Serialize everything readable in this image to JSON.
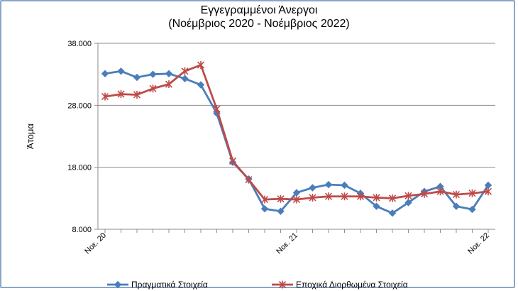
{
  "chart_data": {
    "type": "line",
    "title_line1": "Εγγεγραμμένοι Άνεργοι",
    "title_line2": "(Νοέμβριος 2020 - Νοέμβριος 2022)",
    "ylabel": "Άτομα",
    "xlabel": "",
    "ylim": [
      8000,
      38000
    ],
    "yticks": [
      8000,
      18000,
      28000,
      38000
    ],
    "ytick_labels": [
      "8.000",
      "18.000",
      "28.000",
      "38.000"
    ],
    "n_points": 25,
    "xtick_labels": [
      {
        "index": 0,
        "label": "Νοε. 20"
      },
      {
        "index": 12,
        "label": "Νοε. 21"
      },
      {
        "index": 24,
        "label": "Νοε. 22"
      }
    ],
    "grid": "horizontal",
    "legend_position": "bottom",
    "series": [
      {
        "name": "Πραγματικά Στοιχεία",
        "color": "#4a7ebb",
        "marker": "diamond",
        "values": [
          33100,
          33500,
          32500,
          33000,
          33100,
          32300,
          31300,
          26700,
          18800,
          16100,
          11300,
          10900,
          13900,
          14700,
          15200,
          15100,
          13800,
          11700,
          10600,
          12300,
          14100,
          14900,
          11700,
          11200,
          15100
        ]
      },
      {
        "name": "Εποχικά Διορθωμένα Στοιχεία",
        "color": "#be4b48",
        "marker": "star",
        "values": [
          29400,
          29800,
          29700,
          30700,
          31400,
          33500,
          34500,
          27400,
          19000,
          16000,
          12800,
          12900,
          12800,
          13100,
          13300,
          13300,
          13300,
          13100,
          13000,
          13400,
          13700,
          14100,
          13600,
          13800,
          14100
        ]
      }
    ]
  }
}
